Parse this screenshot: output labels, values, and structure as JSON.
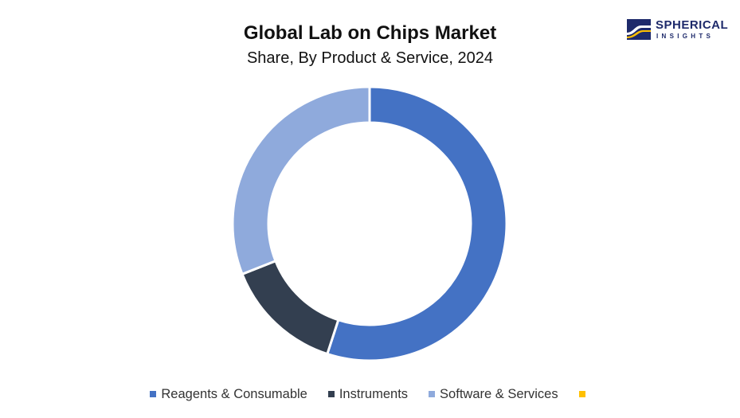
{
  "header": {
    "title": "Global Lab on Chips Market",
    "subtitle": "Share, By Product & Service, 2024"
  },
  "logo": {
    "word1": "SPHERICAL",
    "word2": "INSIGHTS",
    "color": "#1e2a6b"
  },
  "chart_data": {
    "type": "pie",
    "variant": "donut",
    "title": "Global Lab on Chips Market",
    "subtitle": "Share, By Product & Service, 2024",
    "categories": [
      "Reagents & Consumable",
      "Instruments",
      "Software & Services",
      ""
    ],
    "values": [
      55,
      14,
      31,
      0
    ],
    "colors": [
      "#4472c4",
      "#333f50",
      "#8faadc",
      "#ffc000"
    ],
    "legend_position": "bottom",
    "data_labels_shown": false
  }
}
